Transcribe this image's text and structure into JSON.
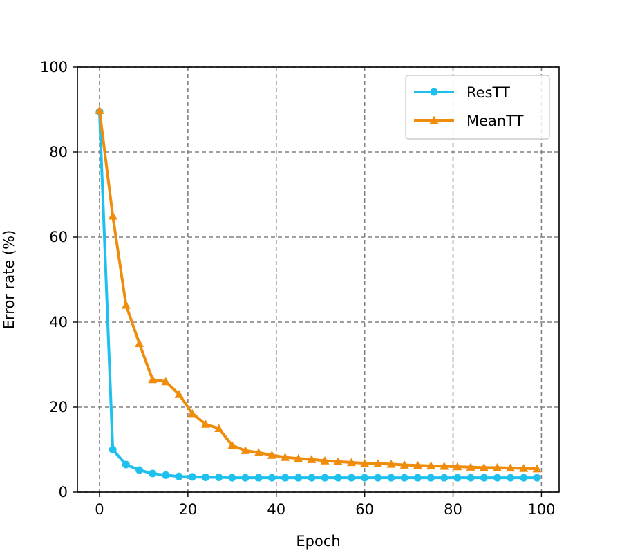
{
  "chart_data": {
    "type": "line",
    "title": "",
    "xlabel": "Epoch",
    "ylabel": "Error rate (%)",
    "xlim": [
      -5,
      104
    ],
    "ylim": [
      0,
      100
    ],
    "xticks": [
      0,
      20,
      40,
      60,
      80,
      100
    ],
    "yticks": [
      0,
      20,
      40,
      60,
      80,
      100
    ],
    "grid": true,
    "legend_position": "top-right",
    "x": [
      0,
      3,
      6,
      9,
      12,
      15,
      18,
      21,
      24,
      27,
      30,
      33,
      36,
      39,
      42,
      45,
      48,
      51,
      54,
      57,
      60,
      63,
      66,
      69,
      72,
      75,
      78,
      81,
      84,
      87,
      90,
      93,
      96,
      99
    ],
    "series": [
      {
        "name": "ResTT",
        "color": "#1ec0ee",
        "marker": "circle",
        "values": [
          89.5,
          10.0,
          6.5,
          5.2,
          4.4,
          4.0,
          3.7,
          3.6,
          3.5,
          3.5,
          3.4,
          3.4,
          3.4,
          3.4,
          3.4,
          3.4,
          3.4,
          3.4,
          3.4,
          3.4,
          3.4,
          3.4,
          3.4,
          3.4,
          3.4,
          3.4,
          3.4,
          3.4,
          3.4,
          3.4,
          3.4,
          3.4,
          3.4,
          3.4
        ]
      },
      {
        "name": "MeanTT",
        "color": "#f08c0c",
        "marker": "triangle",
        "values": [
          89.8,
          65.0,
          44.0,
          35.0,
          26.5,
          26.0,
          23.0,
          18.5,
          16.0,
          15.0,
          11.0,
          9.8,
          9.3,
          8.7,
          8.2,
          7.9,
          7.7,
          7.4,
          7.2,
          7.0,
          6.8,
          6.7,
          6.6,
          6.4,
          6.3,
          6.2,
          6.1,
          6.0,
          5.9,
          5.8,
          5.8,
          5.7,
          5.6,
          5.5
        ]
      }
    ]
  }
}
